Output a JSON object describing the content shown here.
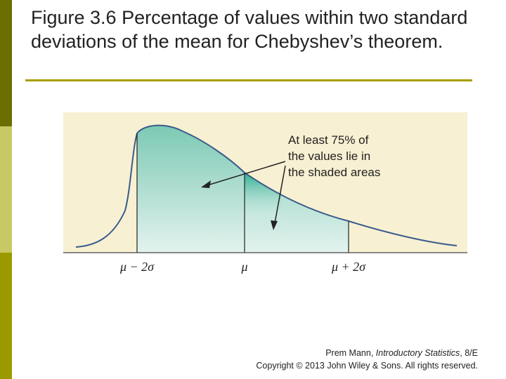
{
  "slide": {
    "title": "Figure 3.6 Percentage of values within two standard deviations of the mean for Chebyshev’s theorem."
  },
  "figure": {
    "callout": [
      "At least 75% of",
      "the values lie in",
      "the shaded areas"
    ],
    "tick_labels": [
      "μ − 2σ",
      "μ",
      "μ + 2σ"
    ],
    "colors": {
      "panel": "#f7f0d2",
      "shade_top": "#7cc9b4",
      "shade_bottom": "#e3f3ee",
      "shade_center": "#21a98a",
      "curve": "#3a5c8c"
    }
  },
  "credit": {
    "author": "Prem Mann, ",
    "book": "Introductory Statistics",
    "edition": ", 8/E",
    "copyright": "Copyright © 2013 John Wiley & Sons. All rights reserved."
  }
}
